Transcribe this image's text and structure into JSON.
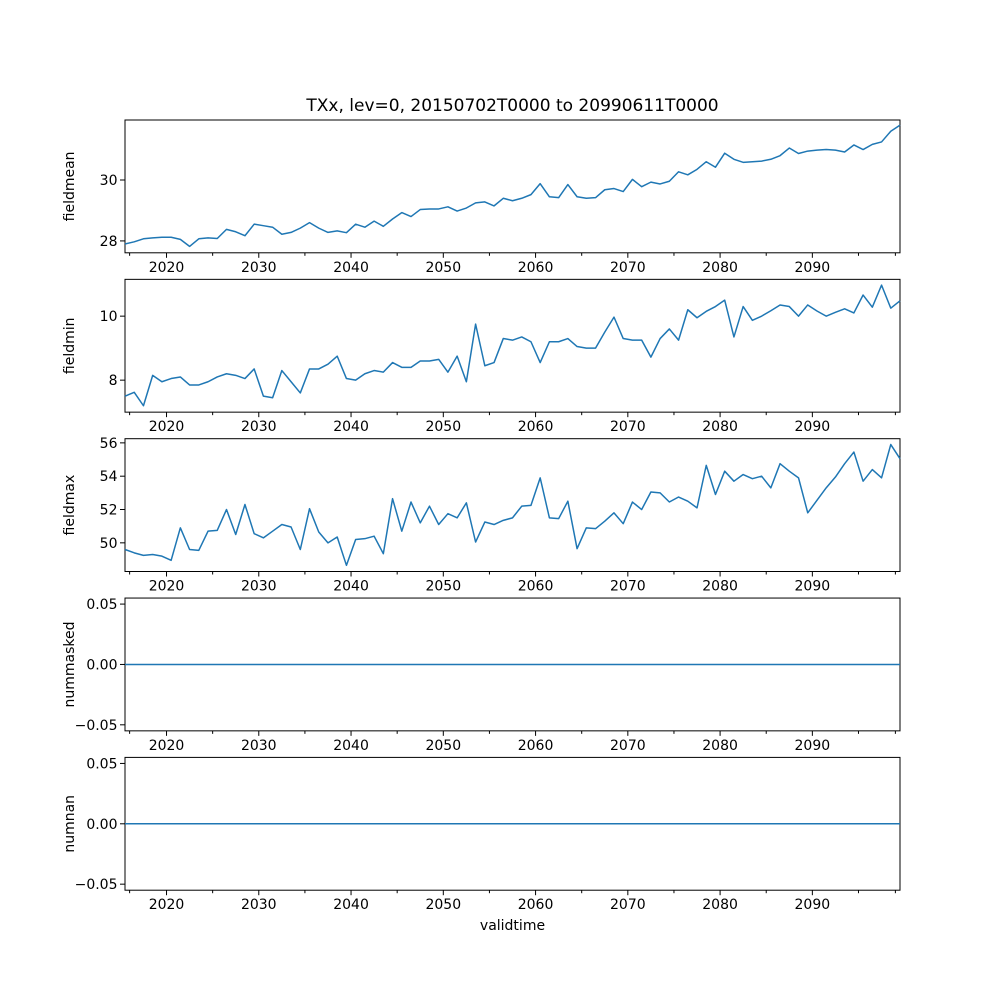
{
  "chart_data": {
    "type": "line",
    "title": "TXx, lev=0, 20150702T0000 to 20990611T0000",
    "xlabel": "validtime",
    "x_start_year": 2015,
    "x_end_year": 2099,
    "n_points": 85,
    "xlim": [
      2015.5,
      2099.5
    ],
    "x_major_ticks": [
      2020,
      2030,
      2040,
      2050,
      2060,
      2070,
      2080,
      2090
    ],
    "x_minor_ticks": [
      2016,
      2025,
      2035,
      2045,
      2055,
      2065,
      2075,
      2085,
      2095,
      2099
    ],
    "grid": false,
    "legend": null,
    "line_color": "#1f77b4",
    "line_width": 1.5,
    "subplots": [
      {
        "ylabel": "fieldmean",
        "ylim": [
          27.61,
          31.97
        ],
        "y_ticks": [
          28,
          30
        ],
        "y_tick_labels": [
          "28",
          "30"
        ],
        "values": [
          27.9,
          27.97,
          28.07,
          28.1,
          28.12,
          28.12,
          28.05,
          27.82,
          28.07,
          28.1,
          28.08,
          28.38,
          28.3,
          28.17,
          28.55,
          28.5,
          28.45,
          28.22,
          28.28,
          28.42,
          28.6,
          28.42,
          28.28,
          28.33,
          28.27,
          28.55,
          28.45,
          28.65,
          28.48,
          28.72,
          28.93,
          28.8,
          29.03,
          29.05,
          29.05,
          29.12,
          28.98,
          29.08,
          29.25,
          29.28,
          29.15,
          29.4,
          29.32,
          29.4,
          29.52,
          29.88,
          29.45,
          29.42,
          29.85,
          29.45,
          29.4,
          29.42,
          29.68,
          29.72,
          29.62,
          30.02,
          29.78,
          29.93,
          29.87,
          29.96,
          30.27,
          30.17,
          30.35,
          30.6,
          30.42,
          30.88,
          30.68,
          30.58,
          30.6,
          30.62,
          30.68,
          30.8,
          31.05,
          30.87,
          30.95,
          30.98,
          31.0,
          30.98,
          30.92,
          31.15,
          31.0,
          31.17,
          31.25,
          31.6,
          31.8
        ]
      },
      {
        "ylabel": "fieldmin",
        "ylim": [
          7.0,
          11.15
        ],
        "y_ticks": [
          8,
          10
        ],
        "y_tick_labels": [
          "8",
          "10"
        ],
        "values": [
          7.5,
          7.62,
          7.2,
          8.15,
          7.95,
          8.05,
          8.1,
          7.85,
          7.85,
          7.95,
          8.1,
          8.2,
          8.15,
          8.05,
          8.35,
          7.5,
          7.45,
          8.3,
          7.95,
          7.6,
          8.35,
          8.35,
          8.5,
          8.75,
          8.05,
          8.0,
          8.2,
          8.3,
          8.25,
          8.55,
          8.4,
          8.4,
          8.6,
          8.6,
          8.65,
          8.25,
          8.75,
          7.95,
          9.75,
          8.45,
          8.55,
          9.3,
          9.25,
          9.35,
          9.2,
          8.55,
          9.2,
          9.2,
          9.3,
          9.05,
          9.0,
          9.0,
          9.5,
          9.97,
          9.3,
          9.25,
          9.25,
          8.72,
          9.3,
          9.6,
          9.25,
          10.2,
          9.95,
          10.15,
          10.3,
          10.5,
          9.35,
          10.3,
          9.87,
          10.0,
          10.17,
          10.35,
          10.3,
          10.0,
          10.35,
          10.16,
          10.0,
          10.12,
          10.23,
          10.1,
          10.66,
          10.28,
          10.97,
          10.25,
          10.48
        ]
      },
      {
        "ylabel": "fieldmax",
        "ylim": [
          48.28,
          56.25
        ],
        "y_ticks": [
          50,
          52,
          54,
          56
        ],
        "y_tick_labels": [
          "50",
          "52",
          "54",
          "56"
        ],
        "values": [
          49.6,
          49.4,
          49.25,
          49.3,
          49.2,
          48.95,
          50.9,
          49.6,
          49.55,
          50.7,
          50.75,
          52.0,
          50.5,
          52.3,
          50.55,
          50.3,
          50.7,
          51.1,
          50.95,
          49.6,
          52.05,
          50.65,
          50.0,
          50.35,
          48.65,
          50.2,
          50.25,
          50.4,
          49.35,
          52.65,
          50.7,
          52.45,
          51.2,
          52.2,
          51.1,
          51.75,
          51.5,
          52.4,
          50.05,
          51.25,
          51.1,
          51.35,
          51.5,
          52.2,
          52.25,
          53.9,
          51.5,
          51.45,
          52.5,
          49.65,
          50.9,
          50.85,
          51.3,
          51.8,
          51.15,
          52.45,
          52.0,
          53.05,
          53.0,
          52.45,
          52.75,
          52.5,
          52.1,
          54.65,
          52.9,
          54.3,
          53.7,
          54.1,
          53.85,
          54.0,
          53.3,
          54.75,
          54.3,
          53.9,
          51.8,
          52.55,
          53.3,
          53.95,
          54.75,
          55.45,
          53.7,
          54.4,
          53.9,
          55.9,
          55.05
        ]
      },
      {
        "ylabel": "nummasked",
        "ylim": [
          -0.055,
          0.055
        ],
        "y_ticks": [
          -0.05,
          0.0,
          0.05
        ],
        "y_tick_labels": [
          "−0.05",
          "0.00",
          "0.05"
        ],
        "constant_value": 0
      },
      {
        "ylabel": "numnan",
        "ylim": [
          -0.055,
          0.055
        ],
        "y_ticks": [
          -0.05,
          0.0,
          0.05
        ],
        "y_tick_labels": [
          "−0.05",
          "0.00",
          "0.05"
        ],
        "constant_value": 0
      }
    ]
  }
}
